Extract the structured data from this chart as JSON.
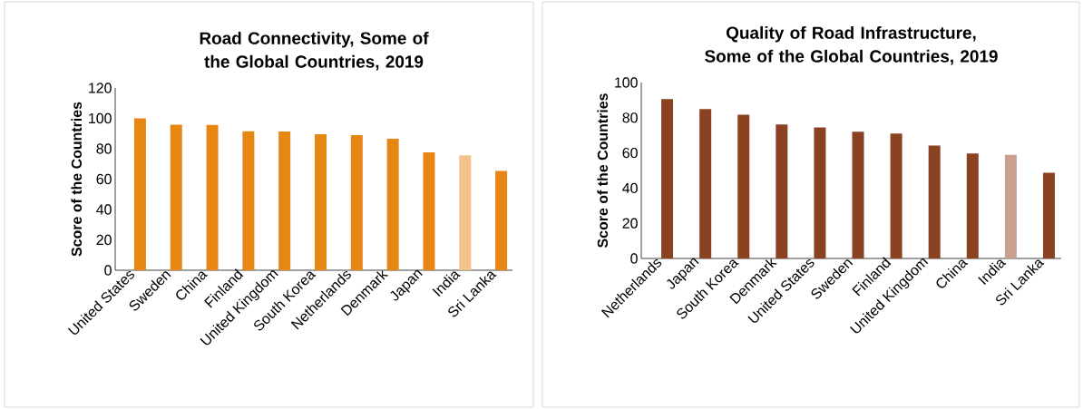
{
  "chart_data": [
    {
      "type": "bar",
      "title": "Road Connectivity, Some of the Global Countries, 2019",
      "ylabel": "Score of the Countries",
      "categories": [
        "United States",
        "Sweden",
        "China",
        "Finland",
        "United Kingdom",
        "South Korea",
        "Netherlands",
        "Denmark",
        "Japan",
        "India",
        "Sri Lanka"
      ],
      "values": [
        100,
        95.8,
        95.6,
        91.5,
        91.3,
        89.5,
        88.9,
        86.5,
        77.6,
        75.6,
        65.3
      ],
      "colors": [
        "#e68613",
        "#e68613",
        "#e68613",
        "#e68613",
        "#e68613",
        "#e68613",
        "#e68613",
        "#e68613",
        "#e68613",
        "#f2c28a",
        "#e68613"
      ],
      "ylim": [
        0,
        120
      ],
      "yticks": [
        0,
        20,
        40,
        60,
        80,
        100,
        120
      ]
    },
    {
      "type": "bar",
      "title": "Quality of Road Infrastructure, Some of the Global Countries, 2019",
      "ylabel": "Score of the Countries",
      "categories": [
        "Netherlands",
        "Japan",
        "South Korea",
        "Denmark",
        "United States",
        "Sweden",
        "Finland",
        "United Kingdom",
        "China",
        "India",
        "Sri Lanka"
      ],
      "values": [
        90.6,
        84.9,
        81.7,
        76.2,
        74.5,
        72.0,
        71.0,
        64.2,
        59.6,
        58.9,
        48.7
      ],
      "colors": [
        "#8b4222",
        "#8b4222",
        "#8b4222",
        "#8b4222",
        "#8b4222",
        "#8b4222",
        "#8b4222",
        "#8b4222",
        "#8b4222",
        "#c9a08e",
        "#8b4222"
      ],
      "ylim": [
        0,
        100
      ],
      "yticks": [
        0,
        20,
        40,
        60,
        80,
        100
      ]
    }
  ]
}
